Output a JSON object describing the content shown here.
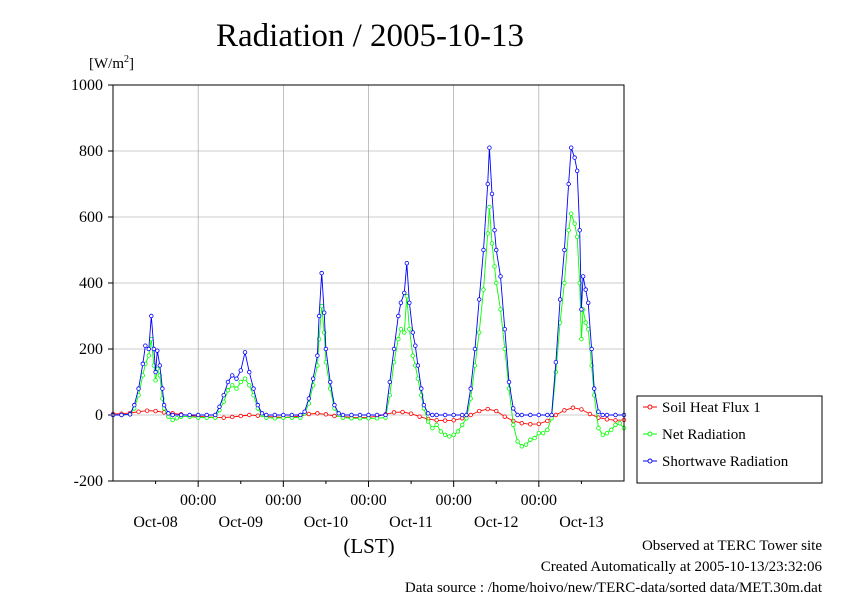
{
  "chart_data": {
    "type": "line",
    "title": "Radiation / 2005-10-13",
    "ylabel": "[W/m",
    "ylabel_sup": "2",
    "ylabel_suffix": "]",
    "xlabel": "(LST)",
    "ylim": [
      -200,
      1000
    ],
    "yticks": [
      -200,
      0,
      200,
      400,
      600,
      800,
      1000
    ],
    "xlim": [
      0,
      6
    ],
    "xunit": "days from Oct-08 00:00",
    "x_midnight_tick_labels": [
      "00:00",
      "00:00",
      "00:00",
      "00:00",
      "00:00"
    ],
    "x_day_labels": [
      "Oct-08",
      "Oct-09",
      "Oct-10",
      "Oct-11",
      "Oct-12",
      "Oct-13"
    ],
    "grid": true,
    "legend_position": "right",
    "series": [
      {
        "name": "Soil Heat Flux 1",
        "color": "#ff0000",
        "marker": "circle",
        "points": [
          [
            0.0,
            3
          ],
          [
            0.1,
            4
          ],
          [
            0.2,
            6
          ],
          [
            0.3,
            10
          ],
          [
            0.4,
            13
          ],
          [
            0.5,
            12
          ],
          [
            0.6,
            8
          ],
          [
            0.7,
            5
          ],
          [
            0.8,
            2
          ],
          [
            0.9,
            -2
          ],
          [
            1.0,
            -4
          ],
          [
            1.1,
            -6
          ],
          [
            1.2,
            -7
          ],
          [
            1.3,
            -8
          ],
          [
            1.4,
            -6
          ],
          [
            1.5,
            -3
          ],
          [
            1.6,
            0
          ],
          [
            1.7,
            -2
          ],
          [
            1.8,
            -5
          ],
          [
            1.9,
            -6
          ],
          [
            2.0,
            -7
          ],
          [
            2.1,
            -6
          ],
          [
            2.2,
            -3
          ],
          [
            2.3,
            3
          ],
          [
            2.4,
            5
          ],
          [
            2.5,
            2
          ],
          [
            2.6,
            -3
          ],
          [
            2.7,
            -5
          ],
          [
            2.8,
            -7
          ],
          [
            2.9,
            -8
          ],
          [
            3.0,
            -7
          ],
          [
            3.1,
            -4
          ],
          [
            3.2,
            2
          ],
          [
            3.3,
            8
          ],
          [
            3.4,
            9
          ],
          [
            3.5,
            4
          ],
          [
            3.6,
            -5
          ],
          [
            3.7,
            -12
          ],
          [
            3.8,
            -16
          ],
          [
            3.9,
            -17
          ],
          [
            4.0,
            -16
          ],
          [
            4.1,
            -10
          ],
          [
            4.2,
            0
          ],
          [
            4.3,
            12
          ],
          [
            4.4,
            18
          ],
          [
            4.5,
            12
          ],
          [
            4.6,
            -5
          ],
          [
            4.7,
            -18
          ],
          [
            4.8,
            -25
          ],
          [
            4.9,
            -28
          ],
          [
            5.0,
            -27
          ],
          [
            5.1,
            -18
          ],
          [
            5.2,
            0
          ],
          [
            5.3,
            14
          ],
          [
            5.4,
            22
          ],
          [
            5.5,
            17
          ],
          [
            5.6,
            3
          ],
          [
            5.7,
            -8
          ],
          [
            5.8,
            -13
          ],
          [
            5.9,
            -16
          ],
          [
            6.0,
            -15
          ]
        ]
      },
      {
        "name": "Net Radiation",
        "color": "#00ff00",
        "marker": "circle",
        "points": [
          [
            0.0,
            0
          ],
          [
            0.1,
            0
          ],
          [
            0.2,
            2
          ],
          [
            0.25,
            20
          ],
          [
            0.3,
            60
          ],
          [
            0.35,
            120
          ],
          [
            0.38,
            155
          ],
          [
            0.42,
            180
          ],
          [
            0.45,
            230
          ],
          [
            0.48,
            150
          ],
          [
            0.5,
            105
          ],
          [
            0.52,
            140
          ],
          [
            0.55,
            120
          ],
          [
            0.58,
            50
          ],
          [
            0.6,
            20
          ],
          [
            0.65,
            -5
          ],
          [
            0.7,
            -15
          ],
          [
            0.75,
            -10
          ],
          [
            0.8,
            -5
          ],
          [
            0.9,
            -5
          ],
          [
            1.0,
            -8
          ],
          [
            1.1,
            -8
          ],
          [
            1.2,
            -8
          ],
          [
            1.25,
            15
          ],
          [
            1.3,
            40
          ],
          [
            1.35,
            75
          ],
          [
            1.4,
            90
          ],
          [
            1.45,
            80
          ],
          [
            1.5,
            100
          ],
          [
            1.55,
            110
          ],
          [
            1.6,
            90
          ],
          [
            1.65,
            60
          ],
          [
            1.7,
            20
          ],
          [
            1.75,
            0
          ],
          [
            1.8,
            -8
          ],
          [
            1.9,
            -10
          ],
          [
            2.0,
            -8
          ],
          [
            2.1,
            -8
          ],
          [
            2.2,
            -8
          ],
          [
            2.25,
            5
          ],
          [
            2.3,
            35
          ],
          [
            2.35,
            90
          ],
          [
            2.4,
            150
          ],
          [
            2.42,
            230
          ],
          [
            2.45,
            330
          ],
          [
            2.48,
            250
          ],
          [
            2.5,
            160
          ],
          [
            2.55,
            80
          ],
          [
            2.6,
            20
          ],
          [
            2.65,
            0
          ],
          [
            2.7,
            -8
          ],
          [
            2.8,
            -10
          ],
          [
            2.9,
            -10
          ],
          [
            3.0,
            -10
          ],
          [
            3.1,
            -10
          ],
          [
            3.2,
            -8
          ],
          [
            3.25,
            60
          ],
          [
            3.3,
            160
          ],
          [
            3.35,
            230
          ],
          [
            3.38,
            260
          ],
          [
            3.42,
            250
          ],
          [
            3.45,
            360
          ],
          [
            3.48,
            260
          ],
          [
            3.52,
            180
          ],
          [
            3.55,
            150
          ],
          [
            3.58,
            110
          ],
          [
            3.62,
            60
          ],
          [
            3.65,
            20
          ],
          [
            3.7,
            -20
          ],
          [
            3.75,
            -40
          ],
          [
            3.8,
            -30
          ],
          [
            3.85,
            -50
          ],
          [
            3.9,
            -60
          ],
          [
            3.95,
            -65
          ],
          [
            4.0,
            -60
          ],
          [
            4.05,
            -50
          ],
          [
            4.1,
            -30
          ],
          [
            4.15,
            -10
          ],
          [
            4.2,
            50
          ],
          [
            4.25,
            150
          ],
          [
            4.3,
            250
          ],
          [
            4.35,
            380
          ],
          [
            4.4,
            550
          ],
          [
            4.42,
            630
          ],
          [
            4.45,
            520
          ],
          [
            4.48,
            450
          ],
          [
            4.5,
            400
          ],
          [
            4.55,
            320
          ],
          [
            4.6,
            200
          ],
          [
            4.65,
            80
          ],
          [
            4.7,
            -30
          ],
          [
            4.75,
            -80
          ],
          [
            4.8,
            -95
          ],
          [
            4.85,
            -90
          ],
          [
            4.9,
            -75
          ],
          [
            4.95,
            -70
          ],
          [
            5.0,
            -55
          ],
          [
            5.05,
            -55
          ],
          [
            5.1,
            -45
          ],
          [
            5.15,
            -10
          ],
          [
            5.2,
            130
          ],
          [
            5.25,
            280
          ],
          [
            5.3,
            400
          ],
          [
            5.35,
            560
          ],
          [
            5.38,
            610
          ],
          [
            5.42,
            580
          ],
          [
            5.45,
            540
          ],
          [
            5.48,
            400
          ],
          [
            5.5,
            230
          ],
          [
            5.52,
            320
          ],
          [
            5.55,
            280
          ],
          [
            5.58,
            260
          ],
          [
            5.62,
            150
          ],
          [
            5.65,
            60
          ],
          [
            5.7,
            -40
          ],
          [
            5.75,
            -60
          ],
          [
            5.8,
            -55
          ],
          [
            5.85,
            -45
          ],
          [
            5.9,
            -30
          ],
          [
            5.95,
            -25
          ],
          [
            6.0,
            -40
          ]
        ]
      },
      {
        "name": "Shortwave Radiation",
        "color": "#0000ff",
        "marker": "circle",
        "points": [
          [
            0.0,
            0
          ],
          [
            0.1,
            0
          ],
          [
            0.2,
            2
          ],
          [
            0.25,
            30
          ],
          [
            0.3,
            80
          ],
          [
            0.35,
            155
          ],
          [
            0.38,
            210
          ],
          [
            0.42,
            200
          ],
          [
            0.45,
            300
          ],
          [
            0.48,
            200
          ],
          [
            0.5,
            130
          ],
          [
            0.52,
            195
          ],
          [
            0.55,
            150
          ],
          [
            0.58,
            80
          ],
          [
            0.6,
            30
          ],
          [
            0.65,
            5
          ],
          [
            0.7,
            0
          ],
          [
            0.8,
            0
          ],
          [
            0.9,
            0
          ],
          [
            1.0,
            0
          ],
          [
            1.1,
            0
          ],
          [
            1.2,
            0
          ],
          [
            1.25,
            25
          ],
          [
            1.3,
            60
          ],
          [
            1.35,
            100
          ],
          [
            1.4,
            120
          ],
          [
            1.45,
            110
          ],
          [
            1.5,
            135
          ],
          [
            1.55,
            190
          ],
          [
            1.6,
            130
          ],
          [
            1.65,
            80
          ],
          [
            1.7,
            30
          ],
          [
            1.75,
            5
          ],
          [
            1.8,
            0
          ],
          [
            1.9,
            0
          ],
          [
            2.0,
            0
          ],
          [
            2.1,
            0
          ],
          [
            2.2,
            0
          ],
          [
            2.25,
            10
          ],
          [
            2.3,
            50
          ],
          [
            2.35,
            110
          ],
          [
            2.4,
            180
          ],
          [
            2.42,
            300
          ],
          [
            2.45,
            430
          ],
          [
            2.48,
            310
          ],
          [
            2.5,
            200
          ],
          [
            2.55,
            100
          ],
          [
            2.6,
            30
          ],
          [
            2.65,
            5
          ],
          [
            2.7,
            0
          ],
          [
            2.8,
            0
          ],
          [
            2.9,
            0
          ],
          [
            3.0,
            0
          ],
          [
            3.1,
            0
          ],
          [
            3.2,
            0
          ],
          [
            3.25,
            100
          ],
          [
            3.3,
            200
          ],
          [
            3.35,
            300
          ],
          [
            3.38,
            340
          ],
          [
            3.42,
            370
          ],
          [
            3.45,
            460
          ],
          [
            3.48,
            340
          ],
          [
            3.52,
            250
          ],
          [
            3.55,
            210
          ],
          [
            3.58,
            150
          ],
          [
            3.62,
            80
          ],
          [
            3.65,
            30
          ],
          [
            3.7,
            5
          ],
          [
            3.75,
            0
          ],
          [
            3.8,
            0
          ],
          [
            3.9,
            0
          ],
          [
            4.0,
            0
          ],
          [
            4.1,
            0
          ],
          [
            4.15,
            0
          ],
          [
            4.2,
            80
          ],
          [
            4.25,
            200
          ],
          [
            4.3,
            350
          ],
          [
            4.35,
            500
          ],
          [
            4.4,
            700
          ],
          [
            4.42,
            810
          ],
          [
            4.45,
            670
          ],
          [
            4.48,
            560
          ],
          [
            4.5,
            500
          ],
          [
            4.55,
            420
          ],
          [
            4.6,
            260
          ],
          [
            4.65,
            100
          ],
          [
            4.7,
            20
          ],
          [
            4.75,
            0
          ],
          [
            4.8,
            0
          ],
          [
            4.9,
            0
          ],
          [
            5.0,
            0
          ],
          [
            5.1,
            0
          ],
          [
            5.15,
            0
          ],
          [
            5.2,
            160
          ],
          [
            5.25,
            350
          ],
          [
            5.3,
            500
          ],
          [
            5.35,
            700
          ],
          [
            5.38,
            810
          ],
          [
            5.42,
            780
          ],
          [
            5.45,
            740
          ],
          [
            5.48,
            560
          ],
          [
            5.5,
            320
          ],
          [
            5.52,
            420
          ],
          [
            5.55,
            380
          ],
          [
            5.58,
            340
          ],
          [
            5.62,
            200
          ],
          [
            5.65,
            80
          ],
          [
            5.7,
            10
          ],
          [
            5.75,
            0
          ],
          [
            5.8,
            0
          ],
          [
            5.9,
            0
          ],
          [
            6.0,
            0
          ]
        ]
      }
    ]
  },
  "footer": {
    "line1": "Observed at TERC Tower site",
    "line2": "Created Automatically at 2005-10-13/23:32:06",
    "line3": "Data source : /home/hoivo/new/TERC-data/sorted data/MET.30m.dat"
  }
}
